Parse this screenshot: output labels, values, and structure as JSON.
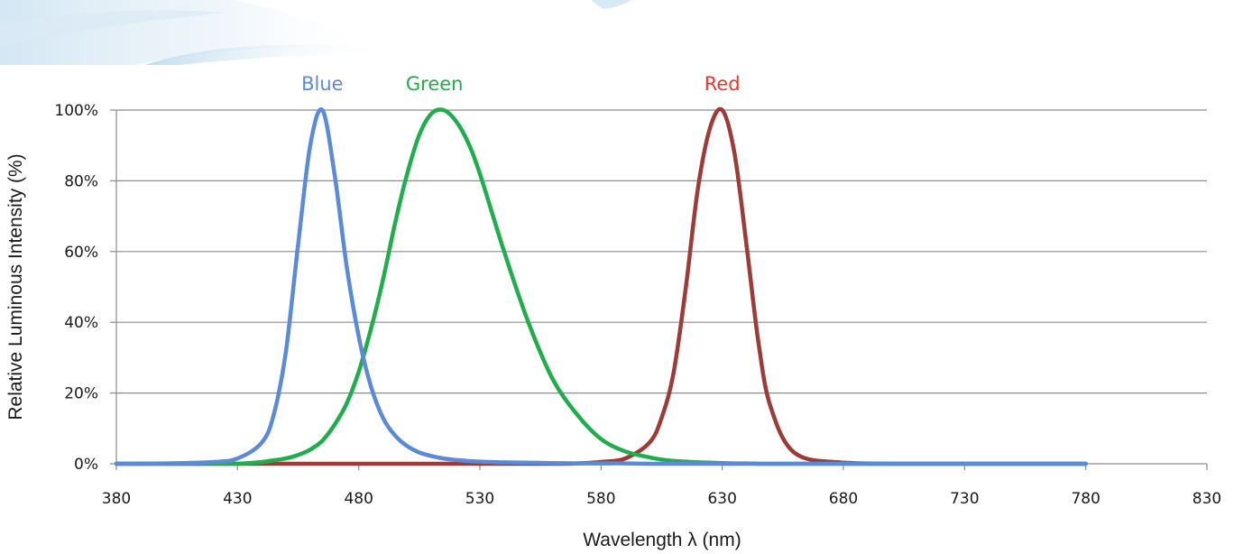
{
  "chart_data": {
    "type": "line",
    "title": "",
    "xlabel": "Wavelength λ (nm)",
    "ylabel": "Relative Luminous Intensity (%)",
    "xlim": [
      380,
      830
    ],
    "ylim": [
      0,
      100
    ],
    "x_ticks": [
      "380",
      "430",
      "480",
      "530",
      "580",
      "630",
      "680",
      "730",
      "780",
      "830"
    ],
    "y_ticks": [
      "0%",
      "20%",
      "40%",
      "60%",
      "80%",
      "100%"
    ],
    "grid": "horizontal",
    "legend": "labels above curve peaks",
    "x": [
      380,
      400,
      420,
      430,
      440,
      445,
      450,
      455,
      460,
      465,
      470,
      475,
      480,
      485,
      490,
      495,
      500,
      505,
      510,
      515,
      520,
      525,
      530,
      540,
      550,
      560,
      570,
      580,
      590,
      600,
      605,
      610,
      615,
      620,
      625,
      630,
      635,
      640,
      645,
      650,
      660,
      680,
      700,
      730,
      760,
      780
    ],
    "series": [
      {
        "name": "Blue",
        "color": "#5b8ad6",
        "values": [
          0,
          0.1,
          0.5,
          1.5,
          6,
          14,
          32,
          62,
          90,
          100,
          82,
          56,
          36,
          22,
          13,
          8,
          5,
          3.2,
          2.2,
          1.5,
          1.1,
          0.8,
          0.6,
          0.4,
          0.3,
          0.2,
          0.1,
          0.1,
          0.1,
          0,
          0,
          0,
          0,
          0,
          0,
          0,
          0,
          0,
          0,
          0,
          0,
          0,
          0,
          0,
          0,
          0
        ]
      },
      {
        "name": "Green",
        "color": "#1fae4b",
        "values": [
          0,
          0,
          0,
          0,
          0.5,
          1,
          1.5,
          2.5,
          4,
          6.5,
          11,
          17,
          26,
          38,
          52,
          68,
          82,
          93,
          99,
          100,
          97,
          91,
          82,
          60,
          40,
          24,
          14,
          7,
          3.5,
          1.8,
          1.2,
          0.8,
          0.6,
          0.4,
          0.3,
          0.2,
          0.1,
          0.1,
          0,
          0,
          0,
          0,
          0,
          0,
          0,
          0
        ]
      },
      {
        "name": "Red",
        "color": "#9c3b37",
        "values": [
          0,
          0,
          0,
          0,
          0,
          0,
          0,
          0,
          0,
          0,
          0,
          0,
          0,
          0,
          0,
          0,
          0,
          0,
          0,
          0,
          0,
          0,
          0,
          0,
          0,
          0,
          0.1,
          0.5,
          1.5,
          6,
          13,
          26,
          50,
          78,
          95,
          100,
          88,
          62,
          34,
          16,
          3,
          0.3,
          0,
          0,
          0,
          0
        ]
      }
    ]
  }
}
